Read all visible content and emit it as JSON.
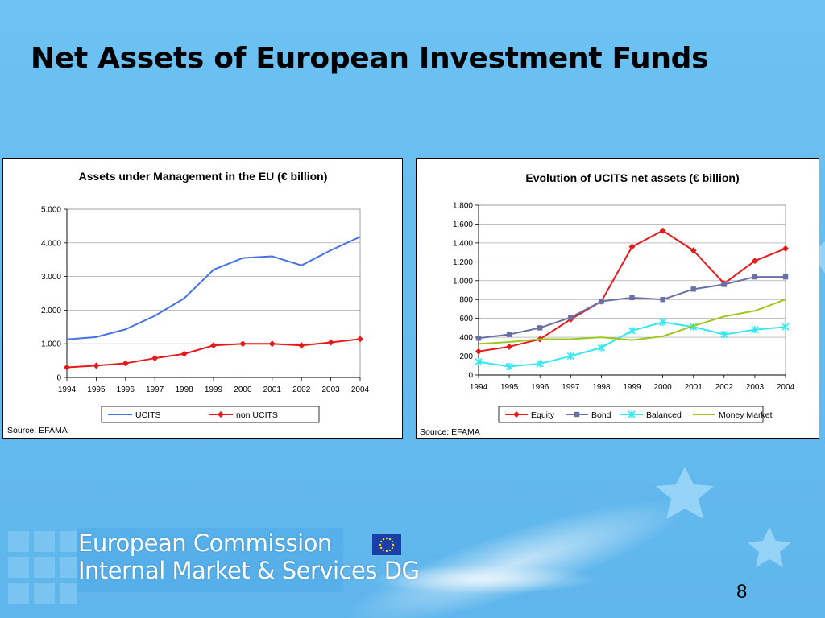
{
  "slide": {
    "title": "Net Assets of European Investment Funds",
    "footer_line1": "European Commission",
    "footer_line2": "Internal Market & Services DG",
    "page_number": "8",
    "colors": {
      "background": "#66bdf0",
      "footer_text": "#ffffff",
      "flag_blue": "#1b3fa8",
      "flag_star": "#ffd200"
    }
  },
  "chart_data": [
    {
      "type": "line",
      "title": "Assets under Management in the EU (€ billion)",
      "source": "Source: EFAMA",
      "categories": [
        "1994",
        "1995",
        "1996",
        "1997",
        "1998",
        "1999",
        "2000",
        "2001",
        "2002",
        "2003",
        "2004"
      ],
      "ylim": [
        0,
        5000
      ],
      "yticks": [
        0,
        1000,
        2000,
        3000,
        4000,
        5000
      ],
      "ytick_labels": [
        "0",
        "1.000",
        "2.000",
        "3.000",
        "4.000",
        "5.000"
      ],
      "grid": true,
      "legend_position": "bottom",
      "series": [
        {
          "name": "UCITS",
          "color": "#4472e4",
          "marker": "none",
          "values": [
            1130,
            1200,
            1430,
            1830,
            2350,
            3200,
            3550,
            3600,
            3330,
            3780,
            4180
          ]
        },
        {
          "name": "non UCITS",
          "color": "#e8191b",
          "marker": "diamond",
          "values": [
            300,
            350,
            420,
            570,
            700,
            950,
            1000,
            1000,
            950,
            1040,
            1140
          ]
        }
      ]
    },
    {
      "type": "line",
      "title": "Evolution of UCITS net assets (€ billion)",
      "source": "Source: EFAMA",
      "categories": [
        "1994",
        "1995",
        "1996",
        "1997",
        "1998",
        "1999",
        "2000",
        "2001",
        "2002",
        "2003",
        "2004"
      ],
      "ylim": [
        0,
        1800
      ],
      "yticks": [
        0,
        200,
        400,
        600,
        800,
        1000,
        1200,
        1400,
        1600,
        1800
      ],
      "ytick_labels": [
        "0",
        "200",
        "400",
        "600",
        "800",
        "1.000",
        "1.200",
        "1.400",
        "1.600",
        "1.800"
      ],
      "grid": true,
      "legend_position": "bottom",
      "series": [
        {
          "name": "Equity",
          "color": "#e8191b",
          "marker": "diamond",
          "values": [
            250,
            300,
            380,
            590,
            780,
            1360,
            1530,
            1320,
            970,
            1210,
            1340
          ]
        },
        {
          "name": "Bond",
          "color": "#6b6fa8",
          "marker": "square",
          "values": [
            390,
            430,
            500,
            610,
            780,
            820,
            800,
            910,
            960,
            1040,
            1040
          ]
        },
        {
          "name": "Balanced",
          "color": "#33e8f0",
          "marker": "asterisk",
          "values": [
            140,
            90,
            120,
            200,
            290,
            470,
            560,
            510,
            430,
            480,
            510
          ]
        },
        {
          "name": "Money Market",
          "color": "#9bc81e",
          "marker": "none",
          "values": [
            330,
            350,
            380,
            380,
            400,
            370,
            410,
            520,
            620,
            680,
            800
          ]
        }
      ]
    }
  ]
}
